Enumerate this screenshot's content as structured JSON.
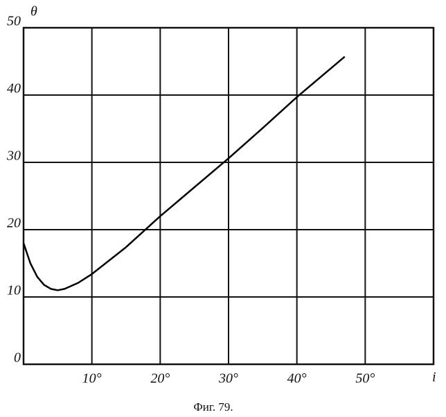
{
  "chart_data": {
    "type": "line",
    "caption": "Фиг. 79.",
    "y_label": "θ",
    "x_label": "i",
    "x": [
      0,
      1,
      2,
      3,
      4,
      5,
      6,
      8,
      10,
      15,
      20,
      25,
      30,
      35,
      40,
      47
    ],
    "values": [
      18,
      15,
      13,
      11.8,
      11.2,
      11,
      11.2,
      12.1,
      13.4,
      17.4,
      22,
      26.3,
      30.6,
      35.1,
      39.7,
      45.7
    ],
    "color": "#000000",
    "xlim": [
      0,
      60
    ],
    "ylim": [
      0,
      50
    ],
    "xticks": [
      {
        "value": 10,
        "label": "10°"
      },
      {
        "value": 20,
        "label": "20°"
      },
      {
        "value": 30,
        "label": "30°"
      },
      {
        "value": 40,
        "label": "40°"
      },
      {
        "value": 50,
        "label": "50°"
      }
    ],
    "yticks": [
      0,
      10,
      20,
      30,
      40,
      50
    ],
    "grid": true
  }
}
